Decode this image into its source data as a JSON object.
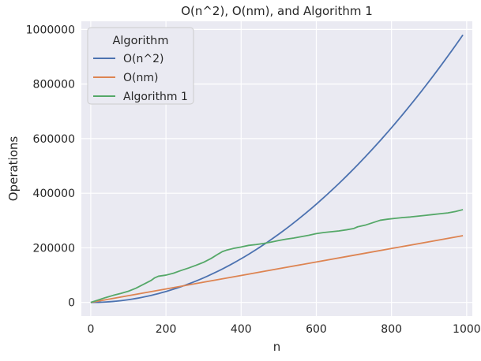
{
  "chart_data": {
    "type": "line",
    "title": "O(n^2), O(nm), and Algorithm 1",
    "xlabel": "n",
    "ylabel": "Operations",
    "xlim": [
      -25,
      1015
    ],
    "ylim": [
      -50000,
      1030000
    ],
    "x_ticks": [
      0,
      200,
      400,
      600,
      800,
      1000
    ],
    "x_tick_labels": [
      "0",
      "200",
      "400",
      "600",
      "800",
      "1000"
    ],
    "y_ticks": [
      0,
      200000,
      400000,
      600000,
      800000,
      1000000
    ],
    "y_tick_labels": [
      "0",
      "200000",
      "400000",
      "600000",
      "800000",
      "1000000"
    ],
    "grid": true,
    "legend_title": "Algorithm",
    "legend_position": "top-left",
    "background_color": "#eaeaf2",
    "series": [
      {
        "name": "O(n^2)",
        "color": "#4c72b0",
        "x": [
          0,
          100,
          200,
          300,
          400,
          500,
          600,
          700,
          800,
          900,
          990
        ],
        "values": [
          0,
          10000,
          40000,
          90000,
          160000,
          250000,
          360000,
          490000,
          640000,
          810000,
          980100
        ]
      },
      {
        "name": "O(nm)",
        "color": "#dd8452",
        "x": [
          0,
          100,
          200,
          300,
          400,
          500,
          600,
          700,
          800,
          900,
          990
        ],
        "values": [
          0,
          24700,
          49400,
          74100,
          98800,
          123500,
          148200,
          172900,
          197600,
          222300,
          244500
        ]
      },
      {
        "name": "Algorithm 1",
        "color": "#55a868",
        "x": [
          0,
          20,
          40,
          60,
          80,
          100,
          120,
          140,
          160,
          170,
          180,
          200,
          220,
          240,
          260,
          280,
          300,
          320,
          340,
          350,
          360,
          380,
          400,
          420,
          440,
          460,
          480,
          500,
          520,
          540,
          560,
          580,
          600,
          620,
          640,
          660,
          680,
          700,
          710,
          730,
          750,
          770,
          790,
          810,
          830,
          850,
          870,
          890,
          910,
          930,
          950,
          970,
          990
        ],
        "values": [
          0,
          9000,
          18000,
          26000,
          33000,
          41000,
          52000,
          66000,
          80000,
          90000,
          96000,
          100000,
          107000,
          117000,
          126000,
          136000,
          147000,
          161000,
          178000,
          186000,
          191000,
          198000,
          203000,
          209000,
          212000,
          216000,
          221000,
          227000,
          232000,
          236000,
          241000,
          246000,
          252000,
          256000,
          259000,
          262000,
          266000,
          271000,
          277000,
          283000,
          292000,
          301000,
          305000,
          308000,
          311000,
          313000,
          316000,
          319000,
          322000,
          325000,
          328000,
          333000,
          340000
        ]
      }
    ]
  }
}
